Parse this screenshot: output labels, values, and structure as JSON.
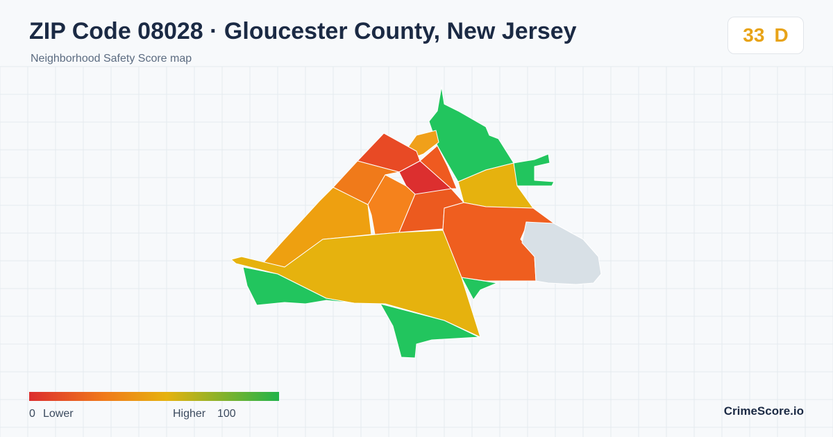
{
  "header": {
    "title": "ZIP Code 08028 · Gloucester County, New Jersey",
    "subtitle": "Neighborhood Safety Score map"
  },
  "score": {
    "value": "33",
    "grade": "D"
  },
  "legend": {
    "min": "0",
    "min_label": "Lower",
    "max_label": "Higher",
    "max": "100"
  },
  "brand": "CrimeScore.io"
}
